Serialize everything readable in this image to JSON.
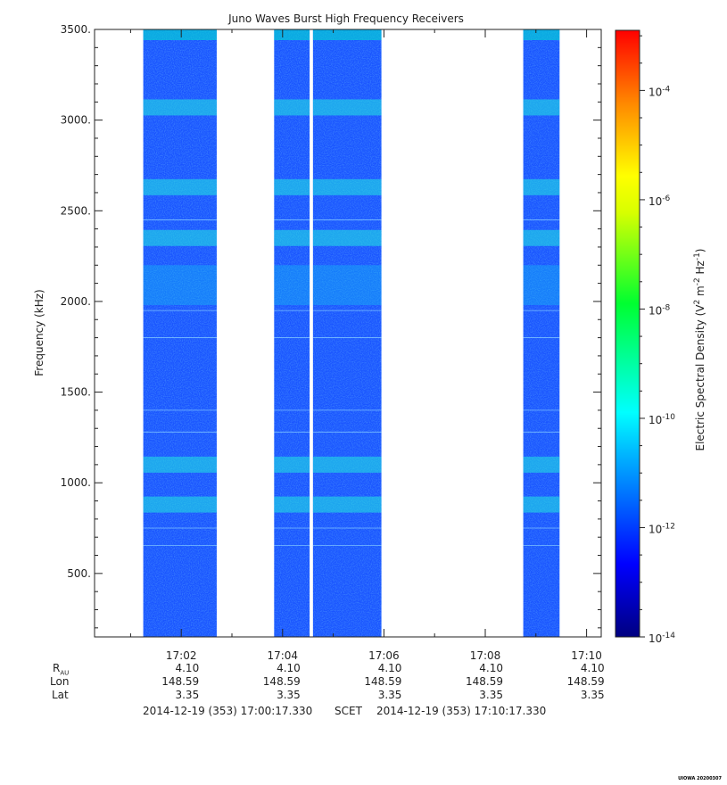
{
  "chart_data": {
    "type": "heatmap",
    "title": "Juno Waves Burst High Frequency Receivers",
    "ylabel": "Frequency (kHz)",
    "ylim": [
      150,
      3500
    ],
    "yticks": [
      "3500.",
      "3000.",
      "2500.",
      "2000.",
      "1500.",
      "1000.",
      "500."
    ],
    "ytick_values": [
      3500,
      3000,
      2500,
      2000,
      1500,
      1000,
      500
    ],
    "xlim": [
      "17:00:17.330",
      "17:10:17.330"
    ],
    "xticks": [
      "17:02",
      "17:04",
      "17:06",
      "17:08",
      "17:10"
    ],
    "data_intervals": [
      {
        "start": "17:01:15",
        "end": "17:02:42"
      },
      {
        "start": "17:03:50",
        "end": "17:04:32"
      },
      {
        "start": "17:04:36",
        "end": "17:05:57"
      },
      {
        "start": "17:08:45",
        "end": "17:09:28"
      }
    ],
    "emission_bands_khz": [
      3070,
      2630,
      2350,
      1100,
      880
    ],
    "colorbar": {
      "label": "Electric Spectral Density (V",
      "label_sup1": "2",
      "label_mid": " m",
      "label_sup2": "-2",
      "label_mid2": " Hz",
      "label_sup3": "-1",
      "label_end": ")",
      "ticks": [
        {
          "base": "10",
          "exp": "-4",
          "value": -4
        },
        {
          "base": "10",
          "exp": "-6",
          "value": -6
        },
        {
          "base": "10",
          "exp": "-8",
          "value": -8
        },
        {
          "base": "10",
          "exp": "-10",
          "value": -10
        },
        {
          "base": "10",
          "exp": "-12",
          "value": -12
        },
        {
          "base": "10",
          "exp": "-14",
          "value": -14
        }
      ],
      "range": [
        -14,
        -2.9
      ]
    }
  },
  "ephemeris": {
    "labels": {
      "r": "R",
      "r_sub": "AU",
      "lon": "Lon",
      "lat": "Lat"
    },
    "columns": [
      {
        "r": "4.10",
        "lon": "148.59",
        "lat": "3.35"
      },
      {
        "r": "4.10",
        "lon": "148.59",
        "lat": "3.35"
      },
      {
        "r": "4.10",
        "lon": "148.59",
        "lat": "3.35"
      },
      {
        "r": "4.10",
        "lon": "148.59",
        "lat": "3.35"
      },
      {
        "r": "4.10",
        "lon": "148.59",
        "lat": "3.35"
      }
    ]
  },
  "footer": {
    "start": "2014-12-19 (353) 17:00:17.330",
    "mid": "SCET",
    "end": "2014-12-19 (353) 17:10:17.330"
  },
  "tag": "UIOWA 20200307"
}
